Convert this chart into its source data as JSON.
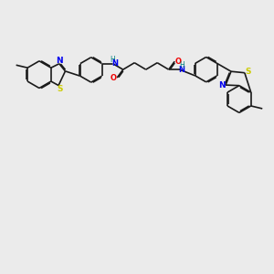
{
  "background_color": "#ebebeb",
  "bond_color": "#1a1a1a",
  "S_color": "#cccc00",
  "N_color": "#0000ee",
  "O_color": "#ee0000",
  "H_color": "#008080",
  "line_width": 1.2,
  "dbo": 0.035,
  "figsize": [
    3.0,
    3.0
  ],
  "dpi": 100,
  "xlim": [
    0,
    10
  ],
  "ylim": [
    0,
    10
  ]
}
